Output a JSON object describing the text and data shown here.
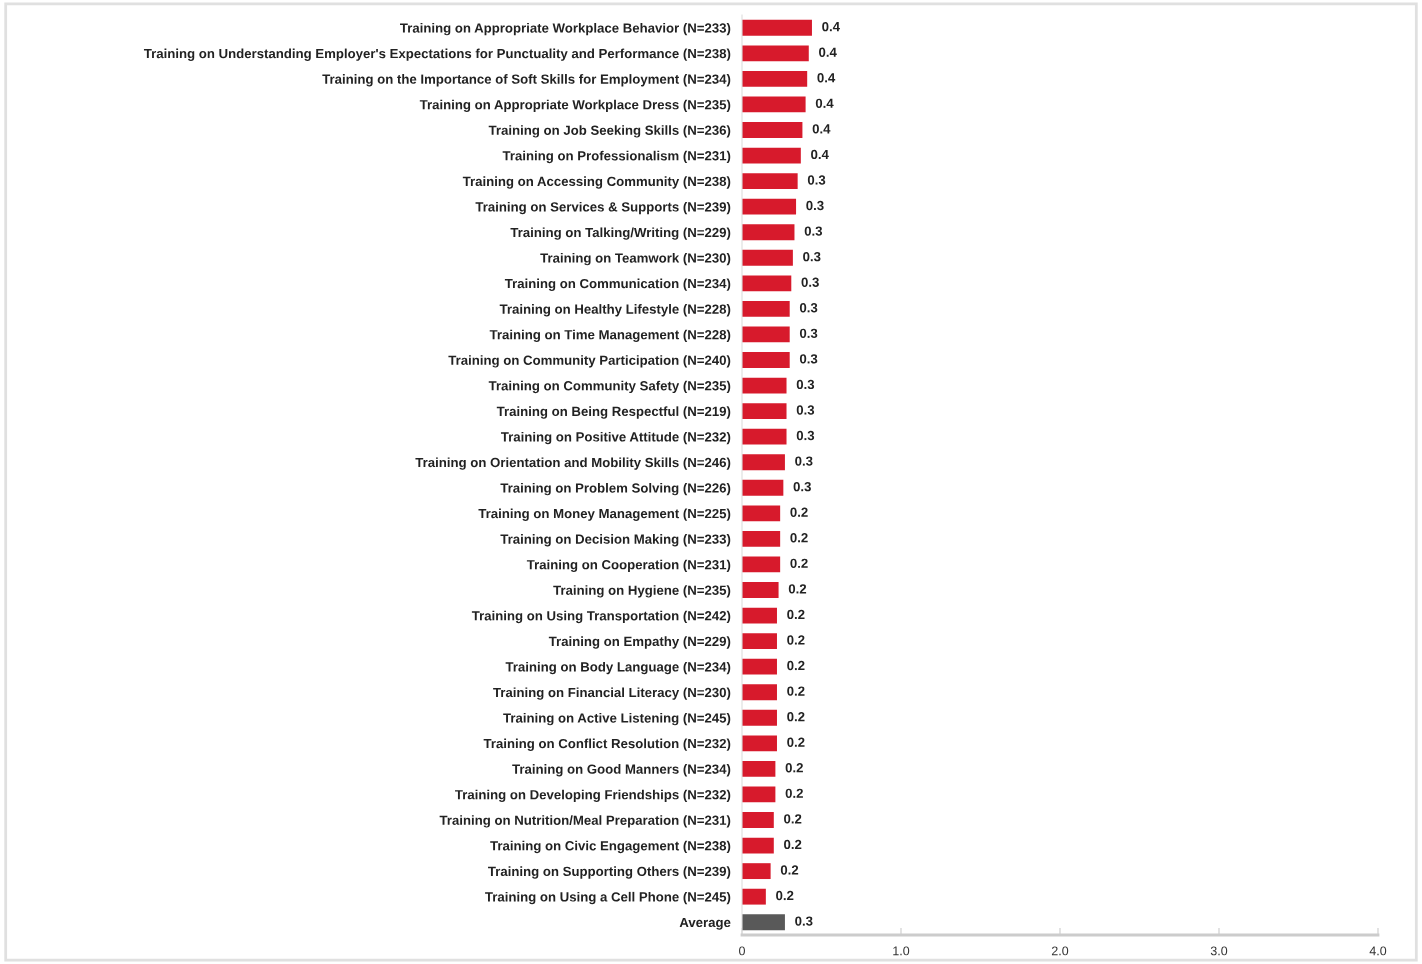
{
  "chart_data": {
    "type": "bar",
    "orientation": "horizontal",
    "categories": [
      "Training on Appropriate Workplace Behavior (N=233)",
      "Training on Understanding Employer's Expectations for Punctuality and Performance (N=238)",
      "Training on the Importance of Soft Skills for Employment (N=234)",
      "Training on Appropriate Workplace Dress (N=235)",
      "Training on Job Seeking Skills (N=236)",
      "Training on Professionalism (N=231)",
      "Training on Accessing Community (N=238)",
      "Training on Services & Supports (N=239)",
      "Training on Talking/Writing (N=229)",
      "Training on Teamwork (N=230)",
      "Training on Communication (N=234)",
      "Training on Healthy Lifestyle (N=228)",
      "Training on Time Management (N=228)",
      "Training on Community Participation (N=240)",
      "Training on Community Safety (N=235)",
      "Training on Being Respectful (N=219)",
      "Training on Positive Attitude (N=232)",
      "Training on Orientation and Mobility Skills (N=246)",
      "Training on Problem Solving (N=226)",
      "Training on Money Management (N=225)",
      "Training on Decision Making (N=233)",
      "Training on Cooperation (N=231)",
      "Training on Hygiene (N=235)",
      "Training on Using Transportation (N=242)",
      "Training on Empathy (N=229)",
      "Training on Body Language (N=234)",
      "Training on Financial Literacy (N=230)",
      "Training on Active Listening (N=245)",
      "Training on Conflict Resolution (N=232)",
      "Training on Good Manners (N=234)",
      "Training on Developing Friendships (N=232)",
      "Training on Nutrition/Meal Preparation (N=231)",
      "Training on Civic Engagement (N=238)",
      "Training on Supporting Others (N=239)",
      "Training on Using a Cell Phone (N=245)",
      "Average"
    ],
    "values": [
      0.44,
      0.42,
      0.41,
      0.4,
      0.38,
      0.37,
      0.35,
      0.34,
      0.33,
      0.32,
      0.31,
      0.3,
      0.3,
      0.3,
      0.28,
      0.28,
      0.28,
      0.27,
      0.26,
      0.24,
      0.24,
      0.24,
      0.23,
      0.22,
      0.22,
      0.22,
      0.22,
      0.22,
      0.22,
      0.21,
      0.21,
      0.2,
      0.2,
      0.18,
      0.15,
      0.27
    ],
    "value_labels": [
      "0.4",
      "0.4",
      "0.4",
      "0.4",
      "0.4",
      "0.4",
      "0.3",
      "0.3",
      "0.3",
      "0.3",
      "0.3",
      "0.3",
      "0.3",
      "0.3",
      "0.3",
      "0.3",
      "0.3",
      "0.3",
      "0.3",
      "0.2",
      "0.2",
      "0.2",
      "0.2",
      "0.2",
      "0.2",
      "0.2",
      "0.2",
      "0.2",
      "0.2",
      "0.2",
      "0.2",
      "0.2",
      "0.2",
      "0.2",
      "0.2",
      "0.3"
    ],
    "colors": [
      "#d71a2c",
      "#d71a2c",
      "#d71a2c",
      "#d71a2c",
      "#d71a2c",
      "#d71a2c",
      "#d71a2c",
      "#d71a2c",
      "#d71a2c",
      "#d71a2c",
      "#d71a2c",
      "#d71a2c",
      "#d71a2c",
      "#d71a2c",
      "#d71a2c",
      "#d71a2c",
      "#d71a2c",
      "#d71a2c",
      "#d71a2c",
      "#d71a2c",
      "#d71a2c",
      "#d71a2c",
      "#d71a2c",
      "#d71a2c",
      "#d71a2c",
      "#d71a2c",
      "#d71a2c",
      "#d71a2c",
      "#d71a2c",
      "#d71a2c",
      "#d71a2c",
      "#d71a2c",
      "#d71a2c",
      "#d71a2c",
      "#d71a2c",
      "#595959"
    ],
    "xlim": [
      0,
      4.0
    ],
    "xticks": [
      0,
      {
        "value": 1,
        "label": "1.0"
      },
      {
        "value": 2,
        "label": "2.0"
      },
      {
        "value": 3,
        "label": "3.0"
      },
      {
        "value": 4,
        "label": "4.0"
      }
    ],
    "grid": false,
    "legend": false
  }
}
